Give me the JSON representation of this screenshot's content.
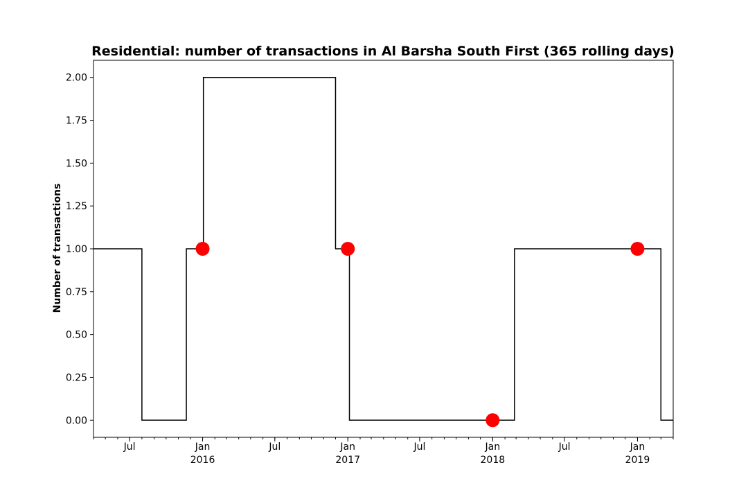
{
  "chart_data": {
    "type": "line",
    "title": "Residential: number of transactions in Al Barsha South First (365 rolling days)",
    "xlabel": "",
    "ylabel": "Number of transactions",
    "xlim": [
      "2015-04-01",
      "2019-04-01"
    ],
    "ylim": [
      -0.1,
      2.1
    ],
    "yticks": [
      0.0,
      0.25,
      0.5,
      0.75,
      1.0,
      1.25,
      1.5,
      1.75,
      2.0
    ],
    "ytick_labels": [
      "0.00",
      "0.25",
      "0.50",
      "0.75",
      "1.00",
      "1.25",
      "1.50",
      "1.75",
      "2.00"
    ],
    "xticks_major": [
      {
        "date": "2015-07-01",
        "label": "Jul"
      },
      {
        "date": "2016-01-01",
        "label": "Jan\n2016"
      },
      {
        "date": "2016-07-01",
        "label": "Jul"
      },
      {
        "date": "2017-01-01",
        "label": "Jan\n2017"
      },
      {
        "date": "2017-07-01",
        "label": "Jul"
      },
      {
        "date": "2018-01-01",
        "label": "Jan\n2018"
      },
      {
        "date": "2018-07-01",
        "label": "Jul"
      },
      {
        "date": "2019-01-01",
        "label": "Jan\n2019"
      }
    ],
    "grid": false,
    "series": [
      {
        "style": "step",
        "color": "#000000",
        "points": [
          {
            "x": "2015-04-01",
            "y": 1
          },
          {
            "x": "2015-08-01",
            "y": 0
          },
          {
            "x": "2015-11-21",
            "y": 1
          },
          {
            "x": "2016-01-03",
            "y": 2
          },
          {
            "x": "2016-12-01",
            "y": 1
          },
          {
            "x": "2017-01-05",
            "y": 0
          },
          {
            "x": "2018-02-25",
            "y": 1
          },
          {
            "x": "2019-03-01",
            "y": 0
          },
          {
            "x": "2019-04-01",
            "y": 0
          }
        ]
      },
      {
        "style": "markers",
        "color": "#ff0000",
        "points": [
          {
            "x": "2016-01-01",
            "y": 1
          },
          {
            "x": "2017-01-01",
            "y": 1
          },
          {
            "x": "2018-01-01",
            "y": 0
          },
          {
            "x": "2019-01-01",
            "y": 1
          }
        ]
      }
    ]
  }
}
